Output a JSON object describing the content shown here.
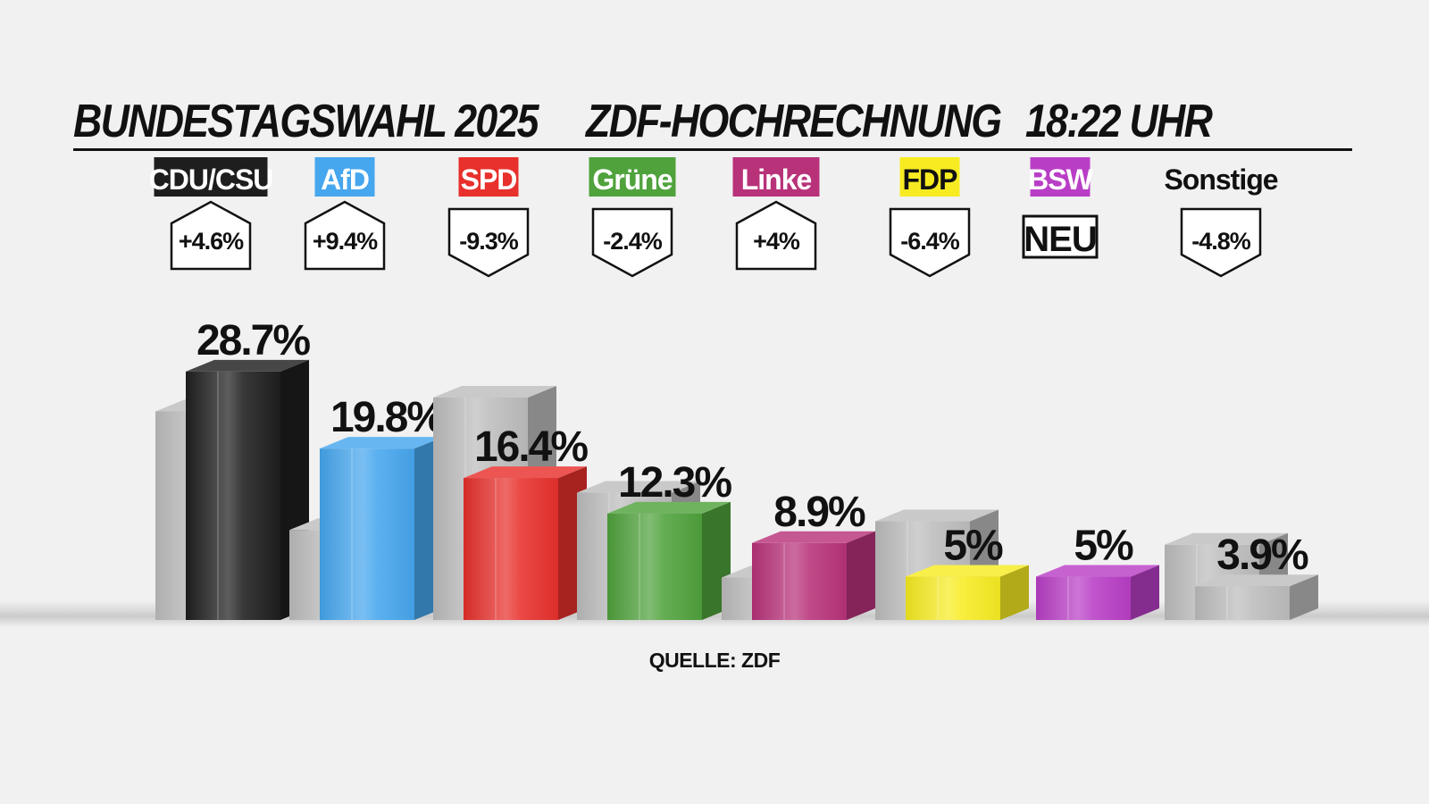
{
  "title": {
    "part1": "BUNDESTAGSWAHL 2025",
    "part2": "ZDF-HOCHRECHNUNG",
    "part3": "18:22 UHR"
  },
  "source": "QUELLE: ZDF",
  "chart_data": {
    "type": "bar",
    "unit": "%",
    "categories": [
      "CDU/CSU",
      "AfD",
      "SPD",
      "Grüne",
      "Linke",
      "FDP",
      "BSW",
      "Sonstige"
    ],
    "series": [
      {
        "values": [
          28.7,
          19.8,
          16.4,
          12.3,
          8.9,
          5,
          5,
          3.9
        ]
      },
      {
        "values": [
          24.1,
          10.4,
          25.7,
          14.7,
          4.9,
          11.4,
          null,
          8.7
        ]
      }
    ],
    "labels": [
      "28.7%",
      "19.8%",
      "16.4%",
      "12.3%",
      "8.9%",
      "5%",
      "5%",
      "3.9%"
    ],
    "changes": [
      "+4.6%",
      "+9.4%",
      "-9.3%",
      "-2.4%",
      "+4%",
      "-6.4%",
      "NEU",
      "-4.8%"
    ],
    "colors": [
      "#1e1e1e",
      "#46a6ee",
      "#e8302c",
      "#4fa23c",
      "#b8327a",
      "#f7ec22",
      "#b93ec6",
      ""
    ],
    "ghost_color": "#bdbdbd"
  }
}
